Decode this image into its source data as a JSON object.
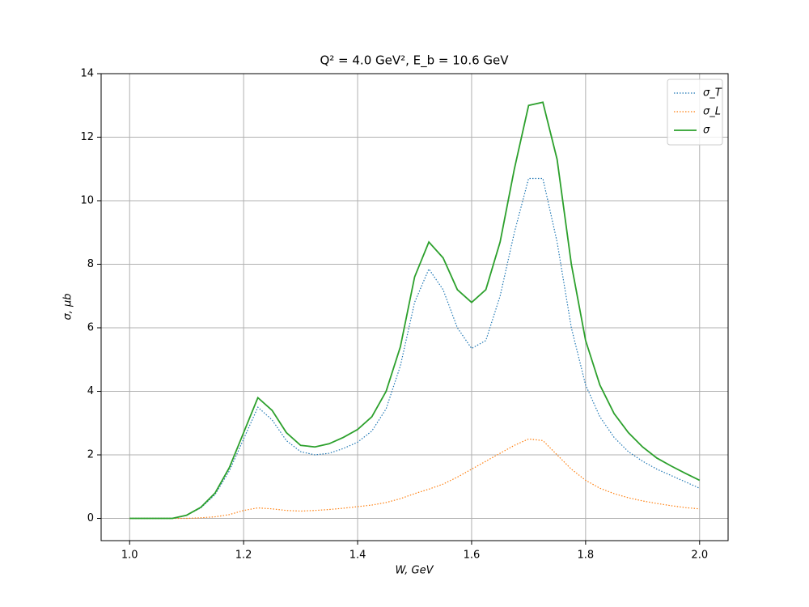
{
  "chart_data": {
    "type": "line",
    "title": "Q² = 4.0 GeV²,  E_b = 10.6 GeV",
    "x_label": "W, GeV",
    "y_label": "σ, μb",
    "x": [
      1.0,
      1.025,
      1.05,
      1.075,
      1.1,
      1.125,
      1.15,
      1.175,
      1.2,
      1.225,
      1.25,
      1.275,
      1.3,
      1.325,
      1.35,
      1.375,
      1.4,
      1.425,
      1.45,
      1.475,
      1.5,
      1.525,
      1.55,
      1.575,
      1.6,
      1.625,
      1.65,
      1.675,
      1.7,
      1.725,
      1.75,
      1.775,
      1.8,
      1.825,
      1.85,
      1.875,
      1.9,
      1.925,
      1.95,
      1.975,
      2.0
    ],
    "series": [
      {
        "name": "σ_T",
        "color": "#1f77b4",
        "linestyle": "dotted",
        "values": [
          0,
          0,
          0,
          0,
          0.1,
          0.33,
          0.75,
          1.5,
          2.5,
          3.5,
          3.1,
          2.45,
          2.1,
          2.0,
          2.05,
          2.2,
          2.4,
          2.75,
          3.45,
          4.8,
          6.8,
          7.85,
          7.2,
          6.0,
          5.35,
          5.6,
          7.0,
          9.0,
          10.7,
          10.7,
          8.7,
          6.0,
          4.2,
          3.2,
          2.55,
          2.1,
          1.8,
          1.55,
          1.35,
          1.15,
          0.95
        ]
      },
      {
        "name": "σ_L",
        "color": "#ff7f0e",
        "linestyle": "dotted",
        "values": [
          0,
          0,
          0,
          0,
          0,
          0.02,
          0.05,
          0.12,
          0.25,
          0.33,
          0.3,
          0.25,
          0.23,
          0.25,
          0.28,
          0.32,
          0.37,
          0.42,
          0.5,
          0.62,
          0.78,
          0.92,
          1.08,
          1.3,
          1.55,
          1.8,
          2.05,
          2.3,
          2.5,
          2.45,
          2.0,
          1.55,
          1.2,
          0.95,
          0.78,
          0.65,
          0.55,
          0.47,
          0.4,
          0.34,
          0.3
        ]
      },
      {
        "name": "σ",
        "color": "#2ca02c",
        "linestyle": "solid",
        "values": [
          0,
          0,
          0,
          0,
          0.1,
          0.35,
          0.8,
          1.6,
          2.7,
          3.8,
          3.4,
          2.7,
          2.3,
          2.25,
          2.35,
          2.55,
          2.8,
          3.2,
          4.0,
          5.4,
          7.6,
          8.7,
          8.2,
          7.2,
          6.8,
          7.2,
          8.7,
          11.0,
          13.0,
          13.1,
          11.3,
          8.0,
          5.6,
          4.2,
          3.3,
          2.7,
          2.25,
          1.9,
          1.65,
          1.42,
          1.2
        ]
      }
    ],
    "xlim": [
      0.95,
      2.05
    ],
    "ylim": [
      -0.7,
      14
    ],
    "xticks": [
      {
        "value": 1.0,
        "label": "1.0"
      },
      1.2,
      1.4,
      1.6,
      1.8,
      {
        "value": 2.0,
        "label": "2.0"
      }
    ],
    "yticks": [
      0,
      2,
      4,
      6,
      8,
      10,
      12,
      14
    ],
    "grid": true,
    "legend": "upper right"
  }
}
